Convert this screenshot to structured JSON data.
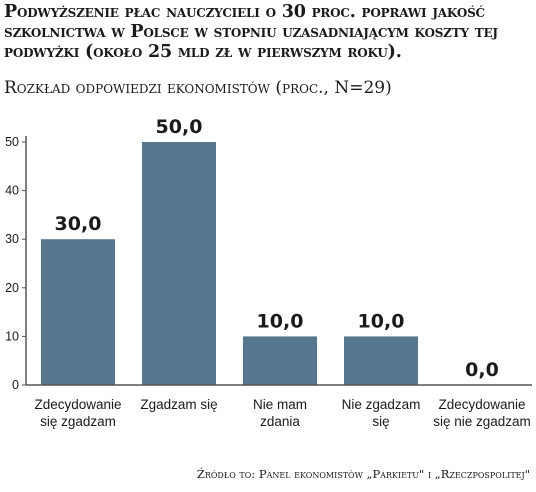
{
  "title": "Podwyższenie płac nauczycieli o 30 proc. poprawi jakość szkolnictwa w Polsce w stopniu uzasadniającym koszty tej podwyżki (około 25 mld zł w pierwszym roku).",
  "subtitle": "Rozkład odpowiedzi ekonomistów (proc., N=29)",
  "source": "Źródło to: Panel ekonomistów „Parkietu\" i „Rzeczpospolitej\"",
  "colors": {
    "bar": "#56788f",
    "axis": "#555555",
    "text": "#1a1a1a"
  },
  "chart_data": {
    "type": "bar",
    "categories": [
      [
        "Zdecydowanie",
        "się zgadzam"
      ],
      [
        "Zgadzam się"
      ],
      [
        "Nie mam",
        "zdania"
      ],
      [
        "Nie zgadzam",
        "się"
      ],
      [
        "Zdecydowanie",
        "się nie zgadzam"
      ]
    ],
    "values": [
      30.0,
      50.0,
      10.0,
      10.0,
      0.0
    ],
    "value_labels": [
      "30,0",
      "50,0",
      "10,0",
      "10,0",
      "0,0"
    ],
    "yticks": [
      0,
      10,
      20,
      30,
      40,
      50
    ],
    "ylim": [
      0,
      50
    ],
    "grid": false,
    "legend": false
  }
}
